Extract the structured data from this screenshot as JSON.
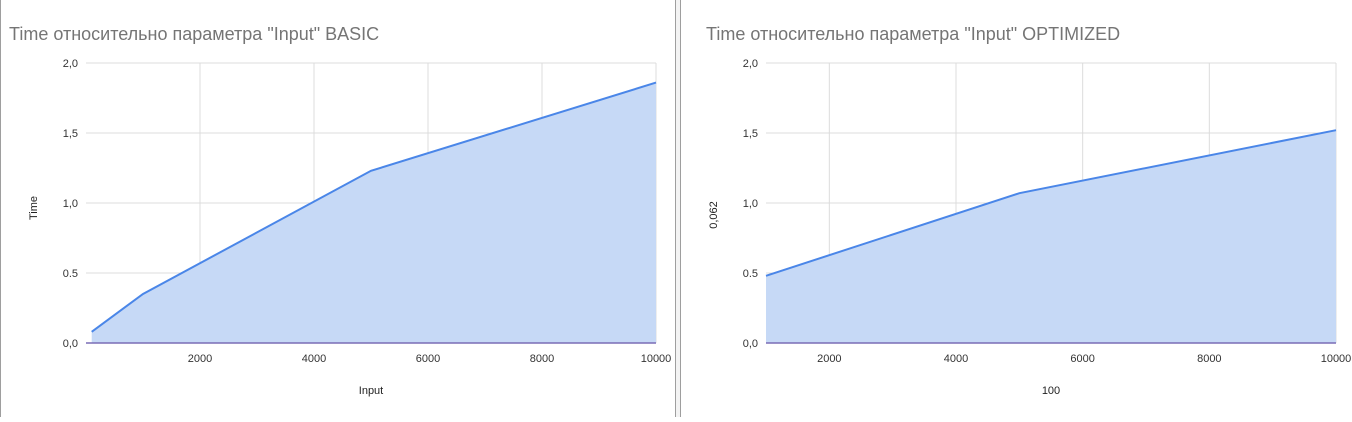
{
  "chart_data": [
    {
      "type": "area",
      "title": "Time относительно параметра \"Input\" BASIC",
      "xlabel": "Input",
      "ylabel": "Time",
      "x_ticks": [
        "2000",
        "4000",
        "6000",
        "8000",
        "10000"
      ],
      "y_ticks": [
        "0,0",
        "0.5",
        "1,0",
        "1,5",
        "2,0"
      ],
      "xlim": [
        0,
        10000
      ],
      "ylim": [
        0,
        2.0
      ],
      "x": [
        100,
        1000,
        5000,
        10000
      ],
      "values": [
        0.08,
        0.35,
        1.23,
        1.86
      ],
      "grid": true,
      "colors": {
        "line": "#4a86e8",
        "fill": "#c6d9f6"
      }
    },
    {
      "type": "area",
      "title": "Time относительно параметра \"Input\" OPTIMIZED",
      "xlabel": "100",
      "ylabel": "0,062",
      "x_ticks": [
        "2000",
        "4000",
        "6000",
        "8000",
        "10000"
      ],
      "y_ticks": [
        "0,0",
        "0.5",
        "1,0",
        "1,5",
        "2,0"
      ],
      "xlim": [
        1000,
        10000
      ],
      "ylim": [
        0,
        2.0
      ],
      "x": [
        1000,
        5000,
        10000
      ],
      "values": [
        0.48,
        1.07,
        1.52
      ],
      "grid": true,
      "colors": {
        "line": "#4a86e8",
        "fill": "#c6d9f6"
      }
    }
  ]
}
